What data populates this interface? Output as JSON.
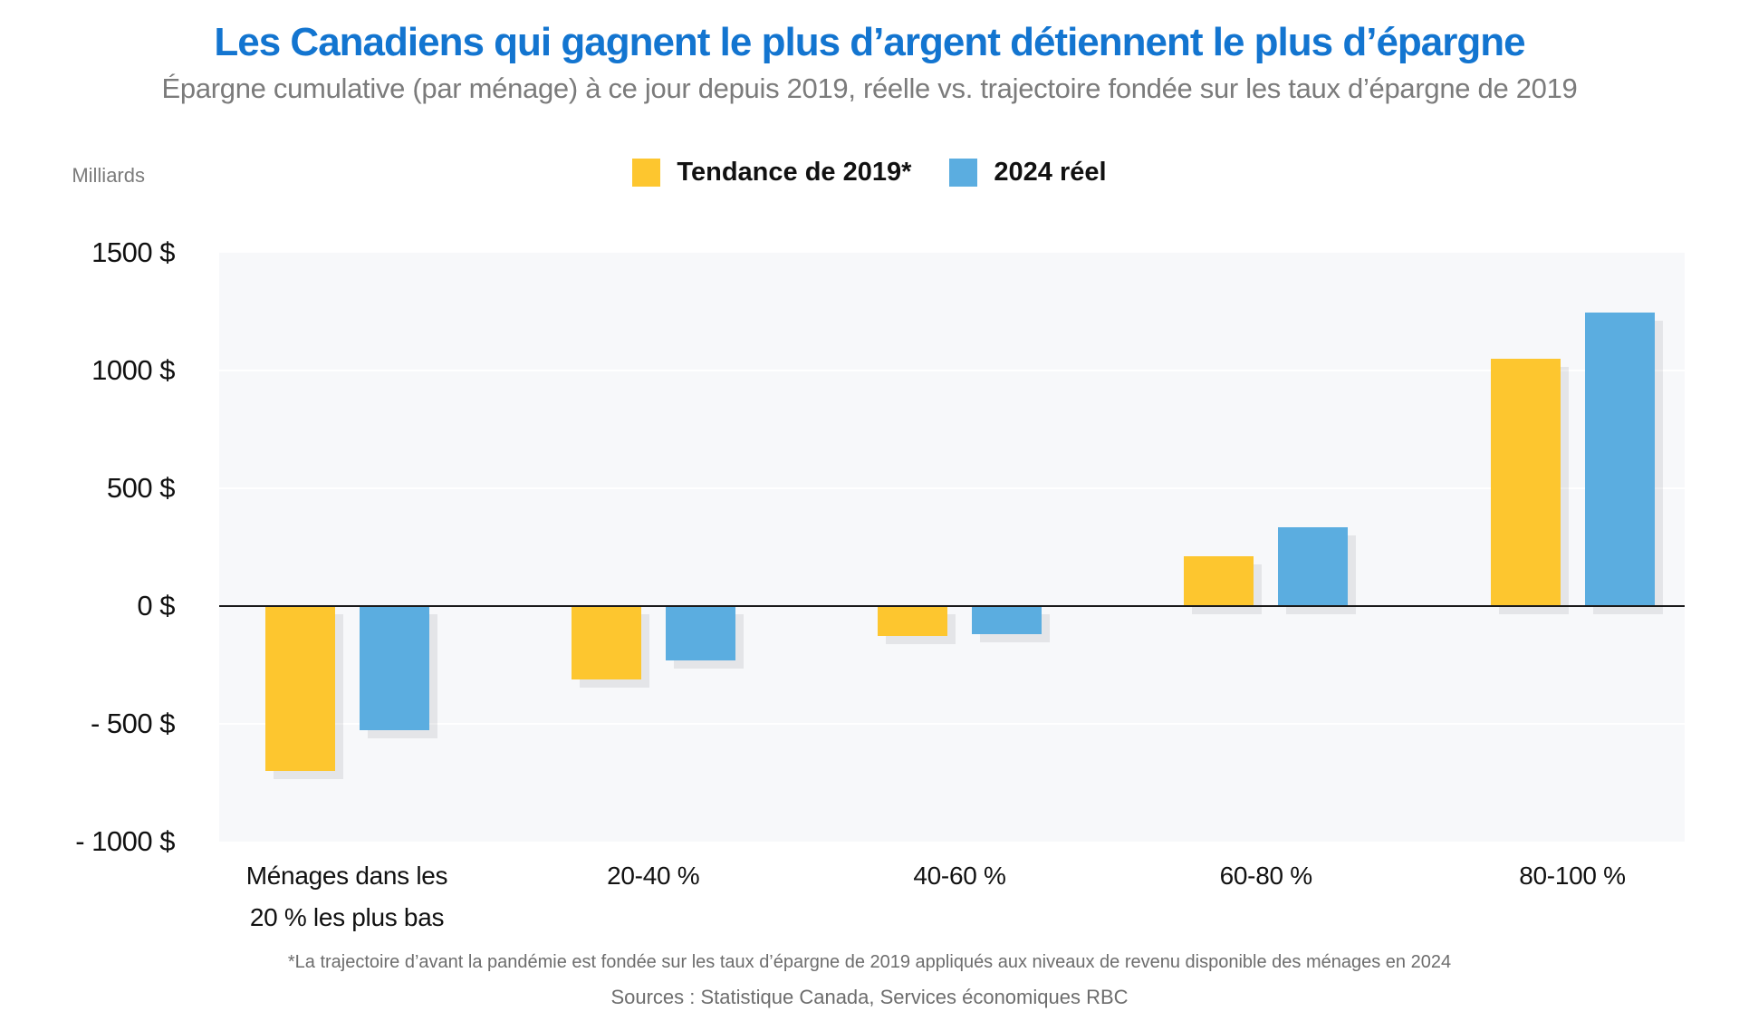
{
  "header": {
    "title": "Les Canadiens qui gagnent le plus d’argent détiennent le plus d’épargne",
    "subtitle": "Épargne cumulative (par ménage) à ce jour depuis 2019, réelle vs. trajectoire fondée sur les taux d’épargne de 2019"
  },
  "legend": {
    "items": [
      {
        "label": "Tendance de 2019*",
        "color": "#FDC62F"
      },
      {
        "label": "2024 réel",
        "color": "#5BADE0"
      }
    ]
  },
  "chart_data": {
    "type": "bar",
    "title": "Les Canadiens qui gagnent le plus d’argent détiennent le plus d’épargne",
    "subtitle": "Épargne cumulative (par ménage) à ce jour depuis 2019, réelle vs. trajectoire fondée sur les taux d’épargne de 2019",
    "unit_label": "Milliards",
    "categories": [
      "Ménages dans les\n20 % les plus bas",
      "20-40 %",
      "40-60 %",
      "60-80 %",
      "80-100 %"
    ],
    "series": [
      {
        "name": "Tendance de 2019*",
        "color": "#FDC62F",
        "values": [
          -700,
          -310,
          -125,
          210,
          1050
        ]
      },
      {
        "name": "2024 réel",
        "color": "#5BADE0",
        "values": [
          -525,
          -230,
          -120,
          335,
          1245
        ]
      }
    ],
    "ylim": [
      -1000,
      1500
    ],
    "y_ticks": [
      1500,
      1000,
      500,
      0,
      -500,
      -1000
    ],
    "y_tick_labels": [
      "1500 $",
      "1000 $",
      "500 $",
      "0 $",
      "- 500 $",
      "- 1000 $"
    ],
    "grid": "horizontal",
    "legend_position": "top-center"
  },
  "footer": {
    "footnote": "*La trajectoire d’avant la pandémie est fondée sur les taux d’épargne de 2019 appliqués aux niveaux de revenu disponible des ménages en 2024",
    "sources": "Sources : Statistique Canada, Services économiques RBC"
  },
  "colors": {
    "title_blue": "#1375D0",
    "tendance_yellow": "#FDC62F",
    "reel_blue": "#5BADE0",
    "plot_background": "#F7F8FA",
    "gridline": "#FFFFFF",
    "zero_line": "#1A1A1A",
    "muted_text": "#7B7B7B"
  }
}
